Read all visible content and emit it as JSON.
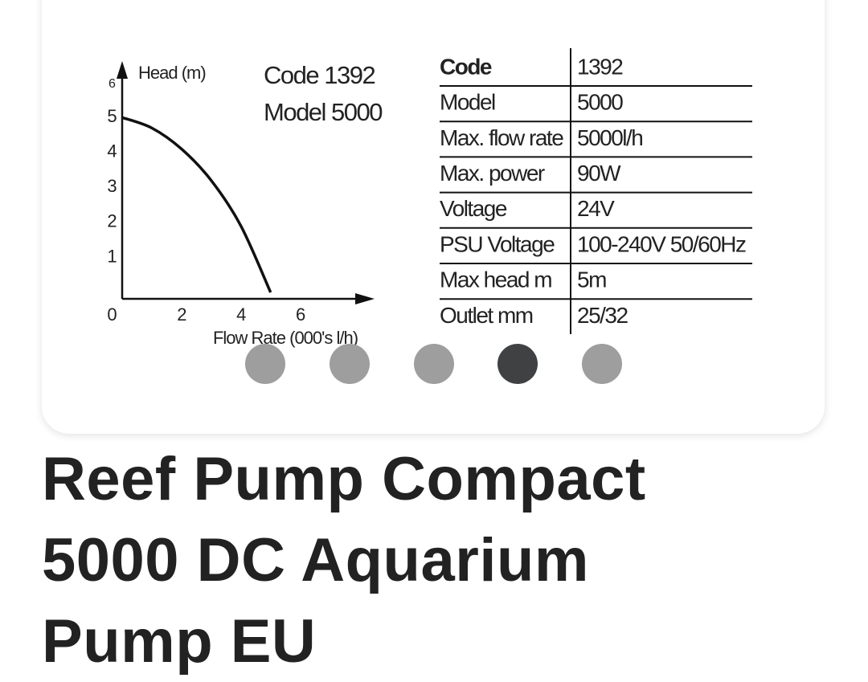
{
  "chart_data": {
    "type": "line",
    "x_label": "Flow Rate (000's l/h)",
    "y_label": "Head (m)",
    "annotations": [
      "Code 1392",
      "Model 5000"
    ],
    "x": [
      0,
      1,
      2,
      3,
      4,
      5
    ],
    "values": [
      5,
      4.7,
      4.1,
      3.2,
      1.9,
      0
    ],
    "color": "#111111",
    "xlim": [
      0,
      8.5
    ],
    "ylim": [
      0,
      6.5
    ],
    "xticks": [
      0,
      2,
      4,
      6
    ],
    "yticks": [
      1,
      2,
      3,
      4,
      5,
      6
    ]
  },
  "table": {
    "rows": [
      [
        "Code",
        "1392"
      ],
      [
        "Model",
        "5000"
      ],
      [
        "Max. flow rate",
        "5000l/h"
      ],
      [
        "Max. power",
        "90W"
      ],
      [
        "Voltage",
        "24V"
      ],
      [
        "PSU Voltage",
        "100-240V 50/60Hz"
      ],
      [
        "Max head m",
        "5m"
      ],
      [
        "Outlet mm",
        "25/32"
      ]
    ]
  },
  "product": {
    "title": "Reef Pump Compact 5000 DC Aquarium Pump EU"
  }
}
